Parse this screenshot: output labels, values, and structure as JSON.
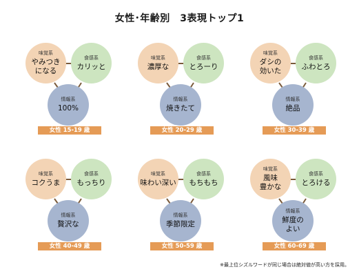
{
  "title": "女性･年齢別　3表現トップ1",
  "categories": {
    "taste": "味覚系",
    "food": "食感系",
    "info": "情報系"
  },
  "groups": [
    {
      "label": "女性 15-19 歳",
      "taste": "やみつき\nになる",
      "food": "カリッと",
      "info": "100%"
    },
    {
      "label": "女性 20-29 歳",
      "taste": "濃厚な",
      "food": "とろーり",
      "info": "焼きたて"
    },
    {
      "label": "女性 30-39 歳",
      "taste": "ダシの\n効いた",
      "food": "ふわとろ",
      "info": "絶品"
    },
    {
      "label": "女性 40-49 歳",
      "taste": "コクうま",
      "food": "もっちり",
      "info": "贅沢な"
    },
    {
      "label": "女性 50-59 歳",
      "taste": "味わい深い",
      "food": "もちもち",
      "info": "季節限定"
    },
    {
      "label": "女性 60-69 歳",
      "taste": "風味\n豊かな",
      "food": "とろける",
      "info": "鮮度の\nよい"
    }
  ],
  "footnote": "※最上位シズルワードが同じ場合は絶対値が高い方を採用。",
  "colors": {
    "taste": "#f3d4b5",
    "food": "#cde5c0",
    "info": "#a6b5cf",
    "label_bg": "#e59b56",
    "connector": "#7a5a3a"
  }
}
